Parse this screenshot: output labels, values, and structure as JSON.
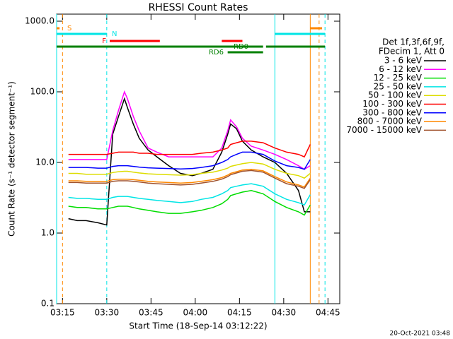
{
  "chart_data": {
    "type": "line",
    "title": "RHESSI Count Rates",
    "x_label": "Start Time (18-Sep-14 03:12:22)",
    "y_label": "Count Rate (s⁻¹ detector segment⁻¹)",
    "legend_header": [
      "Det 1f,3f,6f,9f,",
      "FDecim 1, Att 0"
    ],
    "footer": "20-Oct-2021 03:48",
    "log_y": true,
    "xlim": [
      "03:13",
      "04:49"
    ],
    "xticks": [
      "03:15",
      "03:30",
      "03:45",
      "04:00",
      "04:15",
      "04:30",
      "04:45"
    ],
    "ylim": [
      0.1,
      1000
    ],
    "yticks": [
      {
        "value": 1000,
        "label": "1000.0"
      },
      {
        "value": 100,
        "label": "100.0"
      },
      {
        "value": 10,
        "label": "10.0"
      },
      {
        "value": 1,
        "label": "1.0"
      },
      0.1
    ],
    "x": [
      "03:17",
      "03:20",
      "03:23",
      "03:27",
      "03:30",
      "03:32",
      "03:34",
      "03:36",
      "03:37",
      "03:39",
      "03:41",
      "03:44",
      "03:47",
      "03:51",
      "03:55",
      "03:59",
      "04:02",
      "04:06",
      "04:09",
      "04:11",
      "04:12",
      "04:14",
      "04:16",
      "04:19",
      "04:23",
      "04:27",
      "04:31",
      "04:35",
      "04:37",
      "04:39"
    ],
    "series": [
      {
        "name": "3 - 6 keV",
        "color": "#000000",
        "values": [
          1.6,
          1.5,
          1.5,
          1.4,
          1.3,
          25,
          45,
          80,
          60,
          35,
          22,
          15,
          12,
          9,
          7,
          6.5,
          7,
          8,
          14,
          25,
          35,
          30,
          20,
          15,
          12,
          10,
          7,
          4,
          2,
          2
        ]
      },
      {
        "name": "6 - 12 keV",
        "color": "#ff00ff",
        "values": [
          11,
          11,
          11,
          11,
          11,
          28,
          55,
          100,
          80,
          45,
          28,
          16,
          14,
          12,
          12,
          12,
          12,
          12,
          16,
          28,
          40,
          32,
          22,
          17,
          15,
          13,
          11,
          9,
          8,
          9
        ]
      },
      {
        "name": "12 - 25 keV",
        "color": "#00dd00",
        "values": [
          2.4,
          2.3,
          2.3,
          2.2,
          2.2,
          2.3,
          2.4,
          2.4,
          2.4,
          2.3,
          2.2,
          2.1,
          2.0,
          1.9,
          1.9,
          2.0,
          2.1,
          2.3,
          2.6,
          3.0,
          3.4,
          3.6,
          3.8,
          4.0,
          3.6,
          2.8,
          2.3,
          2.0,
          1.8,
          2.5
        ]
      },
      {
        "name": "25 - 50 keV",
        "color": "#00e5e5",
        "values": [
          3.2,
          3.1,
          3.1,
          3.0,
          3.0,
          3.2,
          3.3,
          3.3,
          3.3,
          3.2,
          3.1,
          3.0,
          2.9,
          2.8,
          2.7,
          2.8,
          3.0,
          3.2,
          3.6,
          4.0,
          4.4,
          4.6,
          4.8,
          5.0,
          4.6,
          3.6,
          3.0,
          2.7,
          2.5,
          3.5
        ]
      },
      {
        "name": "50 - 100 keV",
        "color": "#dddd00",
        "values": [
          7.0,
          7.0,
          6.8,
          6.8,
          6.8,
          7.2,
          7.4,
          7.5,
          7.5,
          7.3,
          7.1,
          6.9,
          6.8,
          6.7,
          6.6,
          6.7,
          7.0,
          7.3,
          7.8,
          8.3,
          8.8,
          9.2,
          9.6,
          10,
          9.5,
          8.0,
          7.0,
          6.5,
          6.0,
          7.0
        ]
      },
      {
        "name": "100 - 300 keV",
        "color": "#ff0000",
        "values": [
          13,
          13,
          13,
          13,
          13,
          13.5,
          14,
          14,
          14,
          14,
          13.5,
          13.5,
          13,
          13,
          13,
          13,
          13.5,
          14,
          15,
          16,
          18,
          19,
          20,
          20,
          19,
          16,
          14,
          13,
          12,
          18
        ]
      },
      {
        "name": "300 - 800 keV",
        "color": "#0000ff",
        "values": [
          8.5,
          8.5,
          8.5,
          8.3,
          8.3,
          8.8,
          9,
          9,
          9,
          8.8,
          8.6,
          8.4,
          8.3,
          8.2,
          8.1,
          8.2,
          8.5,
          9,
          10,
          11,
          12,
          13,
          14,
          14,
          13,
          10.5,
          9,
          8.5,
          8,
          11
        ]
      },
      {
        "name": "800 - 7000 keV",
        "color": "#ff8800",
        "values": [
          5.5,
          5.5,
          5.4,
          5.4,
          5.4,
          5.7,
          5.8,
          5.8,
          5.8,
          5.7,
          5.6,
          5.4,
          5.3,
          5.2,
          5.1,
          5.2,
          5.4,
          5.7,
          6.1,
          6.6,
          7,
          7.4,
          7.8,
          8,
          7.6,
          6.3,
          5.3,
          4.8,
          4.5,
          6
        ]
      },
      {
        "name": "7000 - 15000 keV",
        "color": "#a0522d",
        "values": [
          5.2,
          5.2,
          5.1,
          5.1,
          5.1,
          5.4,
          5.5,
          5.5,
          5.5,
          5.4,
          5.3,
          5.1,
          5.0,
          4.9,
          4.8,
          4.9,
          5.1,
          5.4,
          5.8,
          6.3,
          6.7,
          7.1,
          7.5,
          7.7,
          7.3,
          6.0,
          5.0,
          4.6,
          4.3,
          5.7
        ]
      }
    ],
    "flags": [
      {
        "label": "S",
        "color": "#ff8800",
        "segments": [
          [
            "03:13",
            "03:14"
          ],
          [
            "04:39",
            "04:43"
          ]
        ]
      },
      {
        "label": "N",
        "color": "#00e5e5",
        "segments": [
          [
            "03:13",
            "03:30"
          ],
          [
            "04:27",
            "04:44"
          ]
        ]
      },
      {
        "label": "F",
        "color": "#ff0000",
        "segments": [
          [
            "03:31",
            "03:48"
          ],
          [
            "04:09",
            "04:16"
          ]
        ]
      },
      {
        "label": "RD0",
        "color": "#008000",
        "segments": [
          [
            "03:13",
            "04:23"
          ],
          [
            "04:24",
            "04:44"
          ]
        ]
      },
      {
        "label": "RD6",
        "color": "#008000",
        "segments": [
          [
            "04:11",
            "04:23"
          ]
        ]
      }
    ],
    "vlines": [
      {
        "x": "03:13",
        "color": "#00e5e5",
        "dashed": false
      },
      {
        "x": "03:15",
        "color": "#ff8800",
        "dashed": true
      },
      {
        "x": "03:30",
        "color": "#00e5e5",
        "dashed": true
      },
      {
        "x": "04:27",
        "color": "#00e5e5",
        "dashed": false
      },
      {
        "x": "04:39",
        "color": "#ff8800",
        "dashed": false
      },
      {
        "x": "04:42",
        "color": "#ff8800",
        "dashed": true
      },
      {
        "x": "04:44",
        "color": "#00e5e5",
        "dashed": true
      }
    ]
  }
}
